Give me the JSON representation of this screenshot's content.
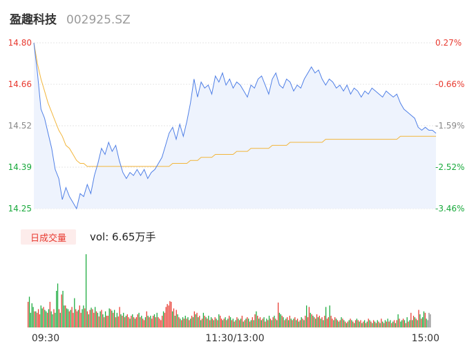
{
  "header": {
    "name": "盈趣科技",
    "code": "002925.SZ"
  },
  "volume_panel": {
    "tab_label": "日成交量",
    "vol_text": "vol: 6.65万手"
  },
  "chart_data": {
    "type": "line",
    "price_axis": {
      "labels": [
        "14.80",
        "14.66",
        "14.52",
        "14.39",
        "14.25"
      ],
      "min": 14.25,
      "max": 14.8
    },
    "pct_axis": {
      "labels": [
        "0.27%",
        "-0.66%",
        "-1.59%",
        "-2.52%",
        "-3.46%"
      ]
    },
    "time_labels": [
      "09:30",
      "11:30/13:00",
      "15:00"
    ],
    "colors": {
      "up": "#e8392f",
      "down": "#18a93b",
      "neutral": "#888888",
      "price_line": "#4f7fe6",
      "avg_line": "#f2b53a",
      "price_fill": "#eef3fd"
    },
    "series": [
      {
        "values": [
          14.8,
          14.7,
          14.58,
          14.55,
          14.5,
          14.45,
          14.38,
          14.35,
          14.28,
          14.32,
          14.29,
          14.27,
          14.25,
          14.3,
          14.29,
          14.33,
          14.3,
          14.36,
          14.4,
          14.45,
          14.43,
          14.47,
          14.44,
          14.46,
          14.41,
          14.37,
          14.35,
          14.37,
          14.36,
          14.38,
          14.36,
          14.38,
          14.35,
          14.37,
          14.38,
          14.4,
          14.42,
          14.46,
          14.5,
          14.52,
          14.48,
          14.53,
          14.49,
          14.54,
          14.6,
          14.68,
          14.62,
          14.67,
          14.65,
          14.66,
          14.63,
          14.69,
          14.67,
          14.7,
          14.66,
          14.68,
          14.65,
          14.67,
          14.66,
          14.64,
          14.62,
          14.66,
          14.65,
          14.68,
          14.69,
          14.66,
          14.63,
          14.68,
          14.7,
          14.66,
          14.65,
          14.68,
          14.67,
          14.64,
          14.66,
          14.65,
          14.68,
          14.7,
          14.72,
          14.7,
          14.71,
          14.68,
          14.66,
          14.68,
          14.67,
          14.65,
          14.66,
          14.64,
          14.66,
          14.63,
          14.65,
          14.64,
          14.62,
          14.64,
          14.63,
          14.65,
          14.64,
          14.63,
          14.62,
          14.64,
          14.63,
          14.62,
          14.63,
          14.6,
          14.58,
          14.57,
          14.56,
          14.55,
          14.52,
          14.51,
          14.52,
          14.51,
          14.51,
          14.5
        ]
      },
      {
        "values": [
          14.8,
          14.73,
          14.68,
          14.64,
          14.6,
          14.57,
          14.54,
          14.51,
          14.49,
          14.46,
          14.45,
          14.43,
          14.41,
          14.4,
          14.4,
          14.39,
          14.39,
          14.39,
          14.39,
          14.39,
          14.39,
          14.39,
          14.39,
          14.39,
          14.39,
          14.39,
          14.39,
          14.39,
          14.39,
          14.39,
          14.39,
          14.39,
          14.39,
          14.39,
          14.39,
          14.39,
          14.39,
          14.39,
          14.39,
          14.4,
          14.4,
          14.4,
          14.4,
          14.4,
          14.41,
          14.41,
          14.41,
          14.42,
          14.42,
          14.42,
          14.42,
          14.43,
          14.43,
          14.43,
          14.43,
          14.43,
          14.43,
          14.44,
          14.44,
          14.44,
          14.44,
          14.45,
          14.45,
          14.45,
          14.45,
          14.45,
          14.45,
          14.46,
          14.46,
          14.46,
          14.46,
          14.46,
          14.47,
          14.47,
          14.47,
          14.47,
          14.47,
          14.47,
          14.47,
          14.47,
          14.47,
          14.47,
          14.48,
          14.48,
          14.48,
          14.48,
          14.48,
          14.48,
          14.48,
          14.48,
          14.48,
          14.48,
          14.48,
          14.48,
          14.48,
          14.48,
          14.48,
          14.48,
          14.48,
          14.48,
          14.48,
          14.48,
          14.48,
          14.49,
          14.49,
          14.49,
          14.49,
          14.49,
          14.49,
          14.49,
          14.49,
          14.49,
          14.49,
          14.49
        ]
      }
    ],
    "volume": {
      "values": [
        35,
        42,
        20,
        33,
        28,
        22,
        22,
        20,
        25,
        18,
        30,
        26,
        28,
        24,
        22,
        20,
        25,
        35,
        22,
        18,
        25,
        20,
        50,
        60,
        25,
        20,
        45,
        50,
        30,
        30,
        26,
        25,
        22,
        24,
        28,
        20,
        40,
        25,
        22,
        24,
        30,
        20,
        25,
        30,
        26,
        100,
        22,
        18,
        24,
        27,
        25,
        20,
        28,
        22,
        20,
        15,
        22,
        24,
        18,
        14,
        22,
        16,
        16,
        26,
        25,
        23,
        20,
        24,
        14,
        20,
        15,
        28,
        18,
        16,
        20,
        14,
        16,
        18,
        14,
        12,
        16,
        18,
        14,
        12,
        14,
        18,
        20,
        14,
        16,
        12,
        10,
        14,
        22,
        16,
        14,
        16,
        12,
        16,
        18,
        14,
        20,
        14,
        12,
        10,
        16,
        22,
        20,
        28,
        32,
        30,
        36,
        35,
        22,
        26,
        16,
        24,
        18,
        14,
        12,
        10,
        14,
        12,
        16,
        12,
        14,
        10,
        12,
        16,
        14,
        22,
        18,
        20,
        14,
        16,
        10,
        12,
        20,
        16,
        14,
        12,
        16,
        10,
        14,
        12,
        10,
        14,
        12,
        10,
        18,
        16,
        12,
        10,
        12,
        14,
        10,
        12,
        16,
        14,
        10,
        12,
        8,
        10,
        14,
        12,
        10,
        12,
        16,
        8,
        10,
        12,
        14,
        12,
        8,
        10,
        14,
        10,
        18,
        22,
        16,
        12,
        14,
        10,
        12,
        14,
        8,
        12,
        10,
        16,
        12,
        10,
        14,
        16,
        12,
        10,
        34,
        20,
        18,
        16,
        14,
        10,
        12,
        14,
        10,
        16,
        12,
        10,
        12,
        14,
        10,
        12,
        8,
        10,
        14,
        12,
        10,
        16,
        30,
        14,
        28,
        20,
        18,
        16,
        14,
        12,
        18,
        14,
        16,
        12,
        14,
        10,
        16,
        28,
        12,
        14,
        30,
        16,
        12,
        10,
        14,
        12,
        10,
        8,
        10,
        14,
        12,
        10,
        8,
        6,
        8,
        10,
        12,
        10,
        8,
        6,
        10,
        12,
        10,
        8,
        10,
        6,
        8,
        10,
        6,
        8,
        12,
        10,
        8,
        6,
        10,
        8,
        6,
        10,
        8,
        6,
        12,
        8,
        6,
        10,
        8,
        12,
        8,
        10,
        6,
        8,
        10,
        6,
        10,
        18,
        12,
        8,
        10,
        12,
        10,
        6,
        14,
        8,
        10,
        20,
        10,
        16,
        14,
        12,
        10,
        24,
        18,
        12,
        14,
        22,
        20,
        12,
        10,
        20,
        18
      ],
      "colors": [
        "up",
        "down",
        "down",
        "down",
        "down",
        "up",
        "down",
        "up",
        "up",
        "up",
        "down",
        "down",
        "up",
        "down",
        "down",
        "up",
        "down",
        "up",
        "down",
        "down",
        "up",
        "down",
        "down",
        "down",
        "up",
        "down",
        "up",
        "down",
        "down",
        "up",
        "down",
        "down",
        "up",
        "down",
        "up",
        "up",
        "down",
        "up",
        "up",
        "down",
        "up",
        "up",
        "down",
        "down",
        "up",
        "down",
        "up",
        "down",
        "up",
        "down",
        "up",
        "up",
        "down",
        "up",
        "down",
        "up",
        "down",
        "up",
        "down",
        "up",
        "down",
        "up",
        "up",
        "down",
        "up",
        "down",
        "up",
        "down",
        "up",
        "down",
        "up",
        "up",
        "down",
        "up",
        "down",
        "up",
        "down",
        "up",
        "up",
        "down",
        "up",
        "down",
        "up",
        "down",
        "up",
        "up",
        "down",
        "up",
        "down",
        "up",
        "up",
        "down",
        "up",
        "down",
        "up",
        "down",
        "up",
        "up",
        "down",
        "up",
        "down",
        "up",
        "up",
        "up",
        "up",
        "down",
        "up",
        "up",
        "up",
        "up",
        "up",
        "up",
        "down",
        "up",
        "down",
        "up",
        "down",
        "up",
        "down",
        "up",
        "down",
        "up",
        "down",
        "up",
        "down",
        "up",
        "down",
        "up",
        "down",
        "up",
        "down",
        "up",
        "down",
        "up",
        "down",
        "up",
        "down",
        "up",
        "down",
        "up",
        "down",
        "up",
        "down",
        "up",
        "down",
        "up",
        "down",
        "up",
        "down",
        "up",
        "up",
        "down",
        "up",
        "down",
        "up",
        "down",
        "up",
        "down",
        "up",
        "down",
        "up",
        "down",
        "up",
        "down",
        "up",
        "down",
        "up",
        "down",
        "up",
        "down",
        "up",
        "down",
        "up",
        "down",
        "up",
        "down",
        "up",
        "down",
        "up",
        "down",
        "up",
        "down",
        "up",
        "down",
        "up",
        "down",
        "up",
        "down",
        "up",
        "down",
        "up",
        "down",
        "up",
        "down",
        "up",
        "down",
        "down",
        "up",
        "down",
        "up",
        "down",
        "up",
        "down",
        "up",
        "down",
        "up",
        "down",
        "up",
        "down",
        "up",
        "down",
        "up",
        "down",
        "up",
        "down",
        "up",
        "down",
        "up",
        "up",
        "down",
        "up",
        "down",
        "up",
        "down",
        "up",
        "down",
        "up",
        "down",
        "up",
        "down",
        "up",
        "down",
        "up",
        "up",
        "down",
        "up",
        "up",
        "down",
        "up",
        "down",
        "up",
        "down",
        "up",
        "down",
        "up",
        "down",
        "up",
        "down",
        "up",
        "down",
        "up",
        "down",
        "up",
        "down",
        "up",
        "down",
        "up",
        "down",
        "up",
        "down",
        "up",
        "down",
        "up",
        "down",
        "up",
        "down",
        "up",
        "down",
        "up",
        "down",
        "up",
        "down",
        "up",
        "down",
        "up",
        "down",
        "up",
        "down",
        "up",
        "down",
        "up",
        "down",
        "up",
        "down",
        "up",
        "down",
        "up",
        "down",
        "up",
        "down",
        "down",
        "up",
        "down",
        "up",
        "down",
        "up",
        "down",
        "up",
        "down",
        "up",
        "down",
        "up",
        "down",
        "up",
        "down",
        "up",
        "down",
        "down",
        "up",
        "down",
        "neutral"
      ]
    }
  }
}
